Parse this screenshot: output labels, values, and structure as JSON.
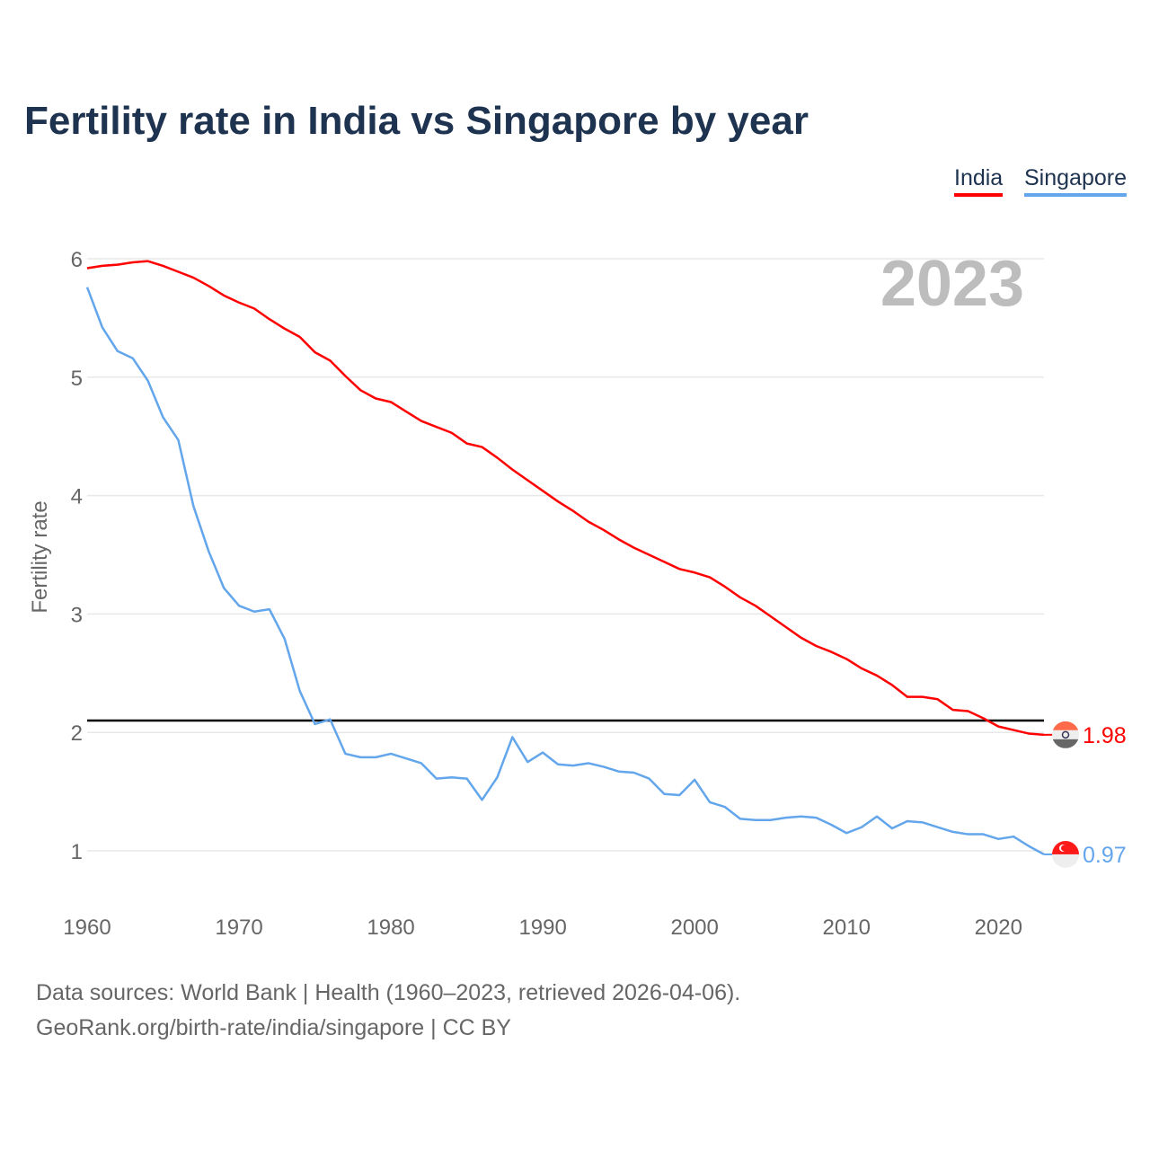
{
  "title": "Fertility rate in India vs Singapore by year",
  "legend": [
    {
      "label": "India",
      "color": "#ff0000"
    },
    {
      "label": "Singapore",
      "color": "#63a6ec"
    }
  ],
  "footer": {
    "line1": "Data sources: World Bank | Health (1960–2023, retrieved 2026-04-06).",
    "line2": "GeoRank.org/birth-rate/india/singapore | CC BY"
  },
  "chart_data": {
    "type": "line",
    "title": "Fertility rate in India vs Singapore by year",
    "ylabel": "Fertility rate",
    "xlabel": "",
    "year_label": "2023",
    "xlim": [
      1960,
      2023
    ],
    "ylim": [
      0.6,
      6.2
    ],
    "xticks": [
      1960,
      1970,
      1980,
      1990,
      2000,
      2010,
      2020
    ],
    "yticks": [
      1,
      2,
      3,
      4,
      5,
      6
    ],
    "grid": true,
    "legend_position": "top-right",
    "reference_line": {
      "value": 2.1,
      "color": "#000000"
    },
    "x": [
      1960,
      1961,
      1962,
      1963,
      1964,
      1965,
      1966,
      1967,
      1968,
      1969,
      1970,
      1971,
      1972,
      1973,
      1974,
      1975,
      1976,
      1977,
      1978,
      1979,
      1980,
      1981,
      1982,
      1983,
      1984,
      1985,
      1986,
      1987,
      1988,
      1989,
      1990,
      1991,
      1992,
      1993,
      1994,
      1995,
      1996,
      1997,
      1998,
      1999,
      2000,
      2001,
      2002,
      2003,
      2004,
      2005,
      2006,
      2007,
      2008,
      2009,
      2010,
      2011,
      2012,
      2013,
      2014,
      2015,
      2016,
      2017,
      2018,
      2019,
      2020,
      2021,
      2022,
      2023
    ],
    "series": [
      {
        "name": "India",
        "color": "#ff0000",
        "end_label": "1.98",
        "values": [
          5.92,
          5.94,
          5.95,
          5.97,
          5.98,
          5.94,
          5.89,
          5.84,
          5.77,
          5.69,
          5.63,
          5.58,
          5.49,
          5.41,
          5.34,
          5.21,
          5.14,
          5.01,
          4.89,
          4.82,
          4.79,
          4.71,
          4.63,
          4.58,
          4.53,
          4.44,
          4.41,
          4.32,
          4.22,
          4.13,
          4.04,
          3.95,
          3.87,
          3.78,
          3.71,
          3.63,
          3.56,
          3.5,
          3.44,
          3.38,
          3.35,
          3.31,
          3.23,
          3.14,
          3.07,
          2.98,
          2.89,
          2.8,
          2.73,
          2.68,
          2.62,
          2.54,
          2.48,
          2.4,
          2.3,
          2.3,
          2.28,
          2.19,
          2.18,
          2.12,
          2.05,
          2.02,
          1.99,
          1.98
        ]
      },
      {
        "name": "Singapore",
        "color": "#63a6ec",
        "end_label": "0.97",
        "values": [
          5.76,
          5.42,
          5.22,
          5.16,
          4.97,
          4.66,
          4.47,
          3.91,
          3.53,
          3.22,
          3.07,
          3.02,
          3.04,
          2.79,
          2.35,
          2.07,
          2.11,
          1.82,
          1.79,
          1.79,
          1.82,
          1.78,
          1.74,
          1.61,
          1.62,
          1.61,
          1.43,
          1.62,
          1.96,
          1.75,
          1.83,
          1.73,
          1.72,
          1.74,
          1.71,
          1.67,
          1.66,
          1.61,
          1.48,
          1.47,
          1.6,
          1.41,
          1.37,
          1.27,
          1.26,
          1.26,
          1.28,
          1.29,
          1.28,
          1.22,
          1.15,
          1.2,
          1.29,
          1.19,
          1.25,
          1.24,
          1.2,
          1.16,
          1.14,
          1.14,
          1.1,
          1.12,
          1.04,
          0.97
        ]
      }
    ]
  }
}
